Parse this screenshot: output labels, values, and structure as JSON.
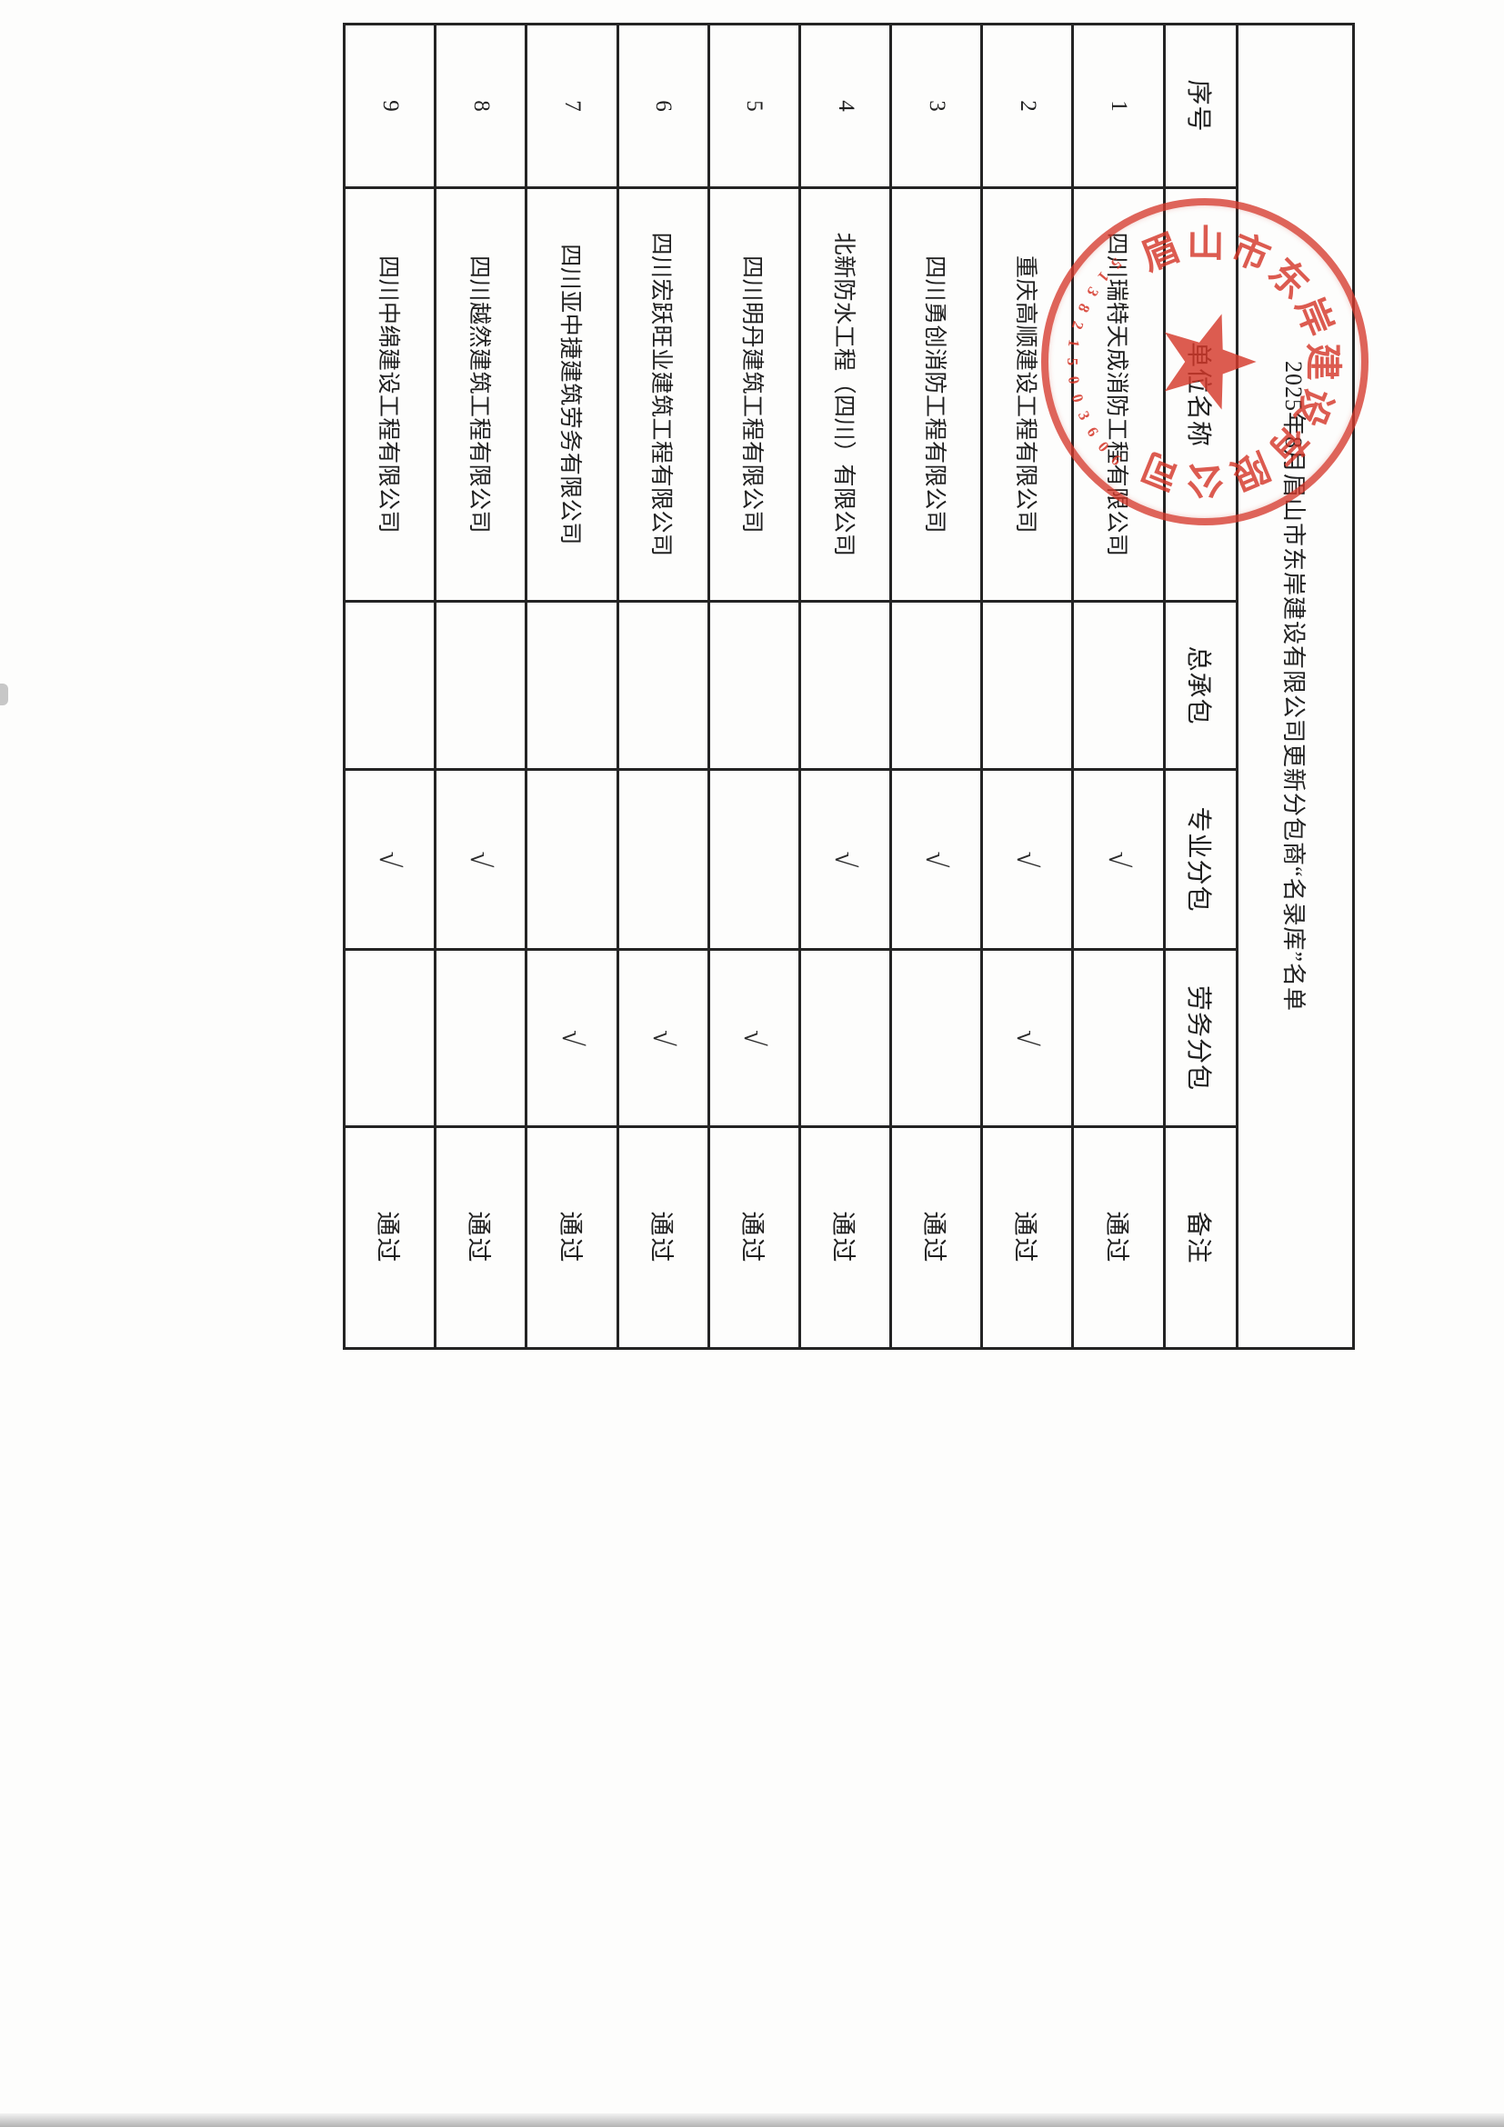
{
  "title": "2025年8月眉山市东岸建设有限公司更新分包商“名录库”名单",
  "table": {
    "headers": [
      "序号",
      "单位名称",
      "总承包",
      "专业分包",
      "劳务分包",
      "备注"
    ],
    "header_keys": [
      "no",
      "name",
      "general",
      "professional",
      "labor",
      "remark"
    ],
    "rows": [
      {
        "no": "1",
        "name": "四川瑞特天成消防工程有限公司",
        "general": "",
        "professional": "√",
        "labor": "",
        "remark": "通过"
      },
      {
        "no": "2",
        "name": "重庆高顺建设工程有限公司",
        "general": "",
        "professional": "√",
        "labor": "√",
        "remark": "通过"
      },
      {
        "no": "3",
        "name": "四川勇创消防工程有限公司",
        "general": "",
        "professional": "√",
        "labor": "",
        "remark": "通过"
      },
      {
        "no": "4",
        "name": "北新防水工程（四川）有限公司",
        "general": "",
        "professional": "√",
        "labor": "",
        "remark": "通过"
      },
      {
        "no": "5",
        "name": "四川明丹建筑工程有限公司",
        "general": "",
        "professional": "",
        "labor": "√",
        "remark": "通过"
      },
      {
        "no": "6",
        "name": "四川宏跃旺业建筑工程有限公司",
        "general": "",
        "professional": "",
        "labor": "√",
        "remark": "通过"
      },
      {
        "no": "7",
        "name": "四川亚中捷建筑劳务有限公司",
        "general": "",
        "professional": "",
        "labor": "√",
        "remark": "通过"
      },
      {
        "no": "8",
        "name": "四川越然建筑工程有限公司",
        "general": "",
        "professional": "√",
        "labor": "",
        "remark": "通过"
      },
      {
        "no": "9",
        "name": "四川中绵建设工程有限公司",
        "general": "",
        "professional": "√",
        "labor": "",
        "remark": "通过"
      }
    ]
  },
  "stamp": {
    "ring_text": [
      "眉",
      "山",
      "市",
      "东",
      "岸",
      "建",
      "设",
      "有",
      "限",
      "公",
      "司"
    ],
    "serial": "5138215003606",
    "color": "#d5392b"
  },
  "checkmark": "√"
}
